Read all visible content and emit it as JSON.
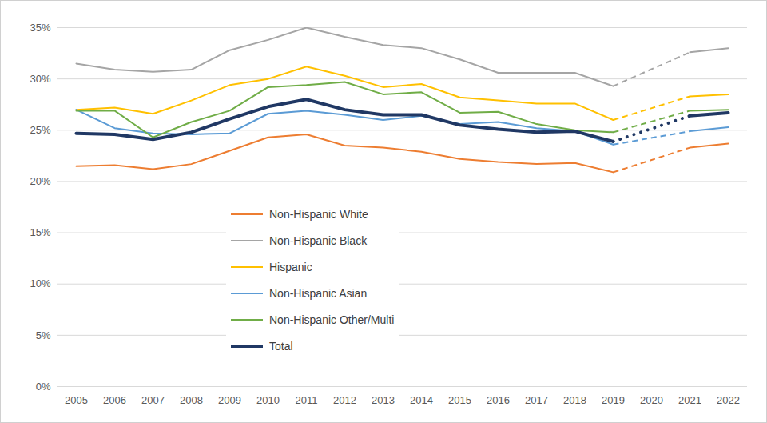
{
  "chart_data": {
    "type": "line",
    "x": [
      2005,
      2006,
      2007,
      2008,
      2009,
      2010,
      2011,
      2012,
      2013,
      2014,
      2015,
      2016,
      2017,
      2018,
      2019,
      2020,
      2021,
      2022
    ],
    "series": [
      {
        "name": "Non-Hispanic White",
        "color": "#ED7D31",
        "values": [
          21.5,
          21.6,
          21.2,
          21.7,
          23.0,
          24.3,
          24.6,
          23.5,
          23.3,
          22.9,
          22.2,
          21.9,
          21.7,
          21.8,
          20.9,
          null,
          23.3,
          23.7
        ]
      },
      {
        "name": "Non-Hispanic Black",
        "color": "#A5A5A5",
        "values": [
          31.5,
          30.9,
          30.7,
          30.9,
          32.8,
          33.8,
          35.0,
          34.1,
          33.3,
          33.0,
          31.9,
          30.6,
          30.6,
          30.6,
          29.3,
          null,
          32.6,
          33.0
        ]
      },
      {
        "name": "Hispanic",
        "color": "#FFC000",
        "values": [
          27.0,
          27.2,
          26.6,
          27.9,
          29.4,
          30.0,
          31.2,
          30.3,
          29.2,
          29.5,
          28.2,
          27.9,
          27.6,
          27.6,
          26.0,
          null,
          28.3,
          28.5
        ]
      },
      {
        "name": "Non-Hispanic Asian",
        "color": "#5B9BD5",
        "values": [
          27.0,
          25.2,
          24.7,
          24.6,
          24.7,
          26.6,
          26.9,
          26.5,
          26.0,
          26.4,
          25.6,
          25.8,
          25.2,
          24.9,
          23.6,
          null,
          24.9,
          25.3
        ]
      },
      {
        "name": "Non-Hispanic Other/Multi",
        "color": "#70AD47",
        "values": [
          26.9,
          26.9,
          24.3,
          25.8,
          26.9,
          29.2,
          29.4,
          29.7,
          28.5,
          28.7,
          26.7,
          26.8,
          25.6,
          25.0,
          24.8,
          null,
          26.9,
          27.0
        ]
      },
      {
        "name": "Total",
        "color": "#203864",
        "values": [
          24.7,
          24.6,
          24.1,
          24.8,
          26.1,
          27.3,
          28.0,
          27.0,
          26.5,
          26.5,
          25.5,
          25.1,
          24.8,
          24.9,
          23.9,
          null,
          26.4,
          26.7
        ]
      }
    ],
    "ylim": [
      0,
      35
    ],
    "yticks": [
      {
        "value": 0,
        "label": "0%"
      },
      {
        "value": 5,
        "label": "5%"
      },
      {
        "value": 10,
        "label": "10%"
      },
      {
        "value": 15,
        "label": "15%"
      },
      {
        "value": 20,
        "label": "20%"
      },
      {
        "value": 25,
        "label": "25%"
      },
      {
        "value": 30,
        "label": "30%"
      },
      {
        "value": 35,
        "label": "35%"
      }
    ],
    "grid": true,
    "legend": "bottom"
  }
}
